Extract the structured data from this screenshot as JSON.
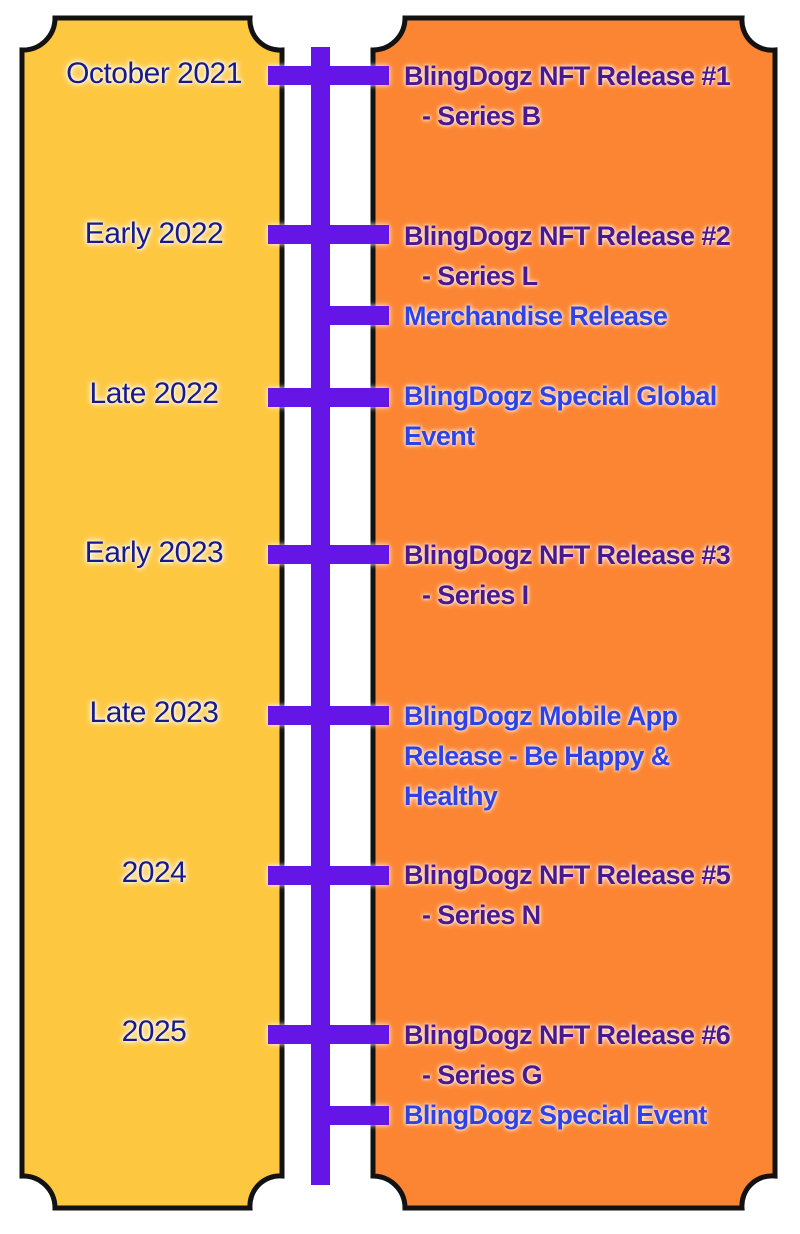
{
  "colors": {
    "left_panel": "#fdc73f",
    "right_panel": "#fb8532",
    "outline": "#121212",
    "spine": "#6514e6",
    "date_text": "#161a8a",
    "nft_text": "#4a1990",
    "event_text": "#2f42e6"
  },
  "timeline": [
    {
      "date": "October 2021",
      "items": [
        {
          "kind": "nft",
          "title": "BlingDogz NFT Release #1",
          "sub": "- Series B"
        }
      ]
    },
    {
      "date": "Early 2022",
      "items": [
        {
          "kind": "nft",
          "title": "BlingDogz NFT Release #2",
          "sub": "- Series L"
        },
        {
          "kind": "event",
          "title": "Merchandise Release"
        }
      ]
    },
    {
      "date": "Late 2022",
      "items": [
        {
          "kind": "event",
          "title": "BlingDogz Special Global Event"
        }
      ]
    },
    {
      "date": "Early 2023",
      "items": [
        {
          "kind": "nft",
          "title": "BlingDogz NFT Release #3",
          "sub": "- Series I"
        }
      ]
    },
    {
      "date": "Late 2023",
      "items": [
        {
          "kind": "event",
          "title": "BlingDogz Mobile App Release - Be Happy & Healthy"
        }
      ]
    },
    {
      "date": "2024",
      "items": [
        {
          "kind": "nft",
          "title": "BlingDogz NFT Release #5",
          "sub": "- Series N"
        }
      ]
    },
    {
      "date": "2025",
      "items": [
        {
          "kind": "nft",
          "title": "BlingDogz NFT Release #6",
          "sub": "- Series G"
        },
        {
          "kind": "event",
          "title": "BlingDogz Special Event"
        }
      ]
    }
  ]
}
